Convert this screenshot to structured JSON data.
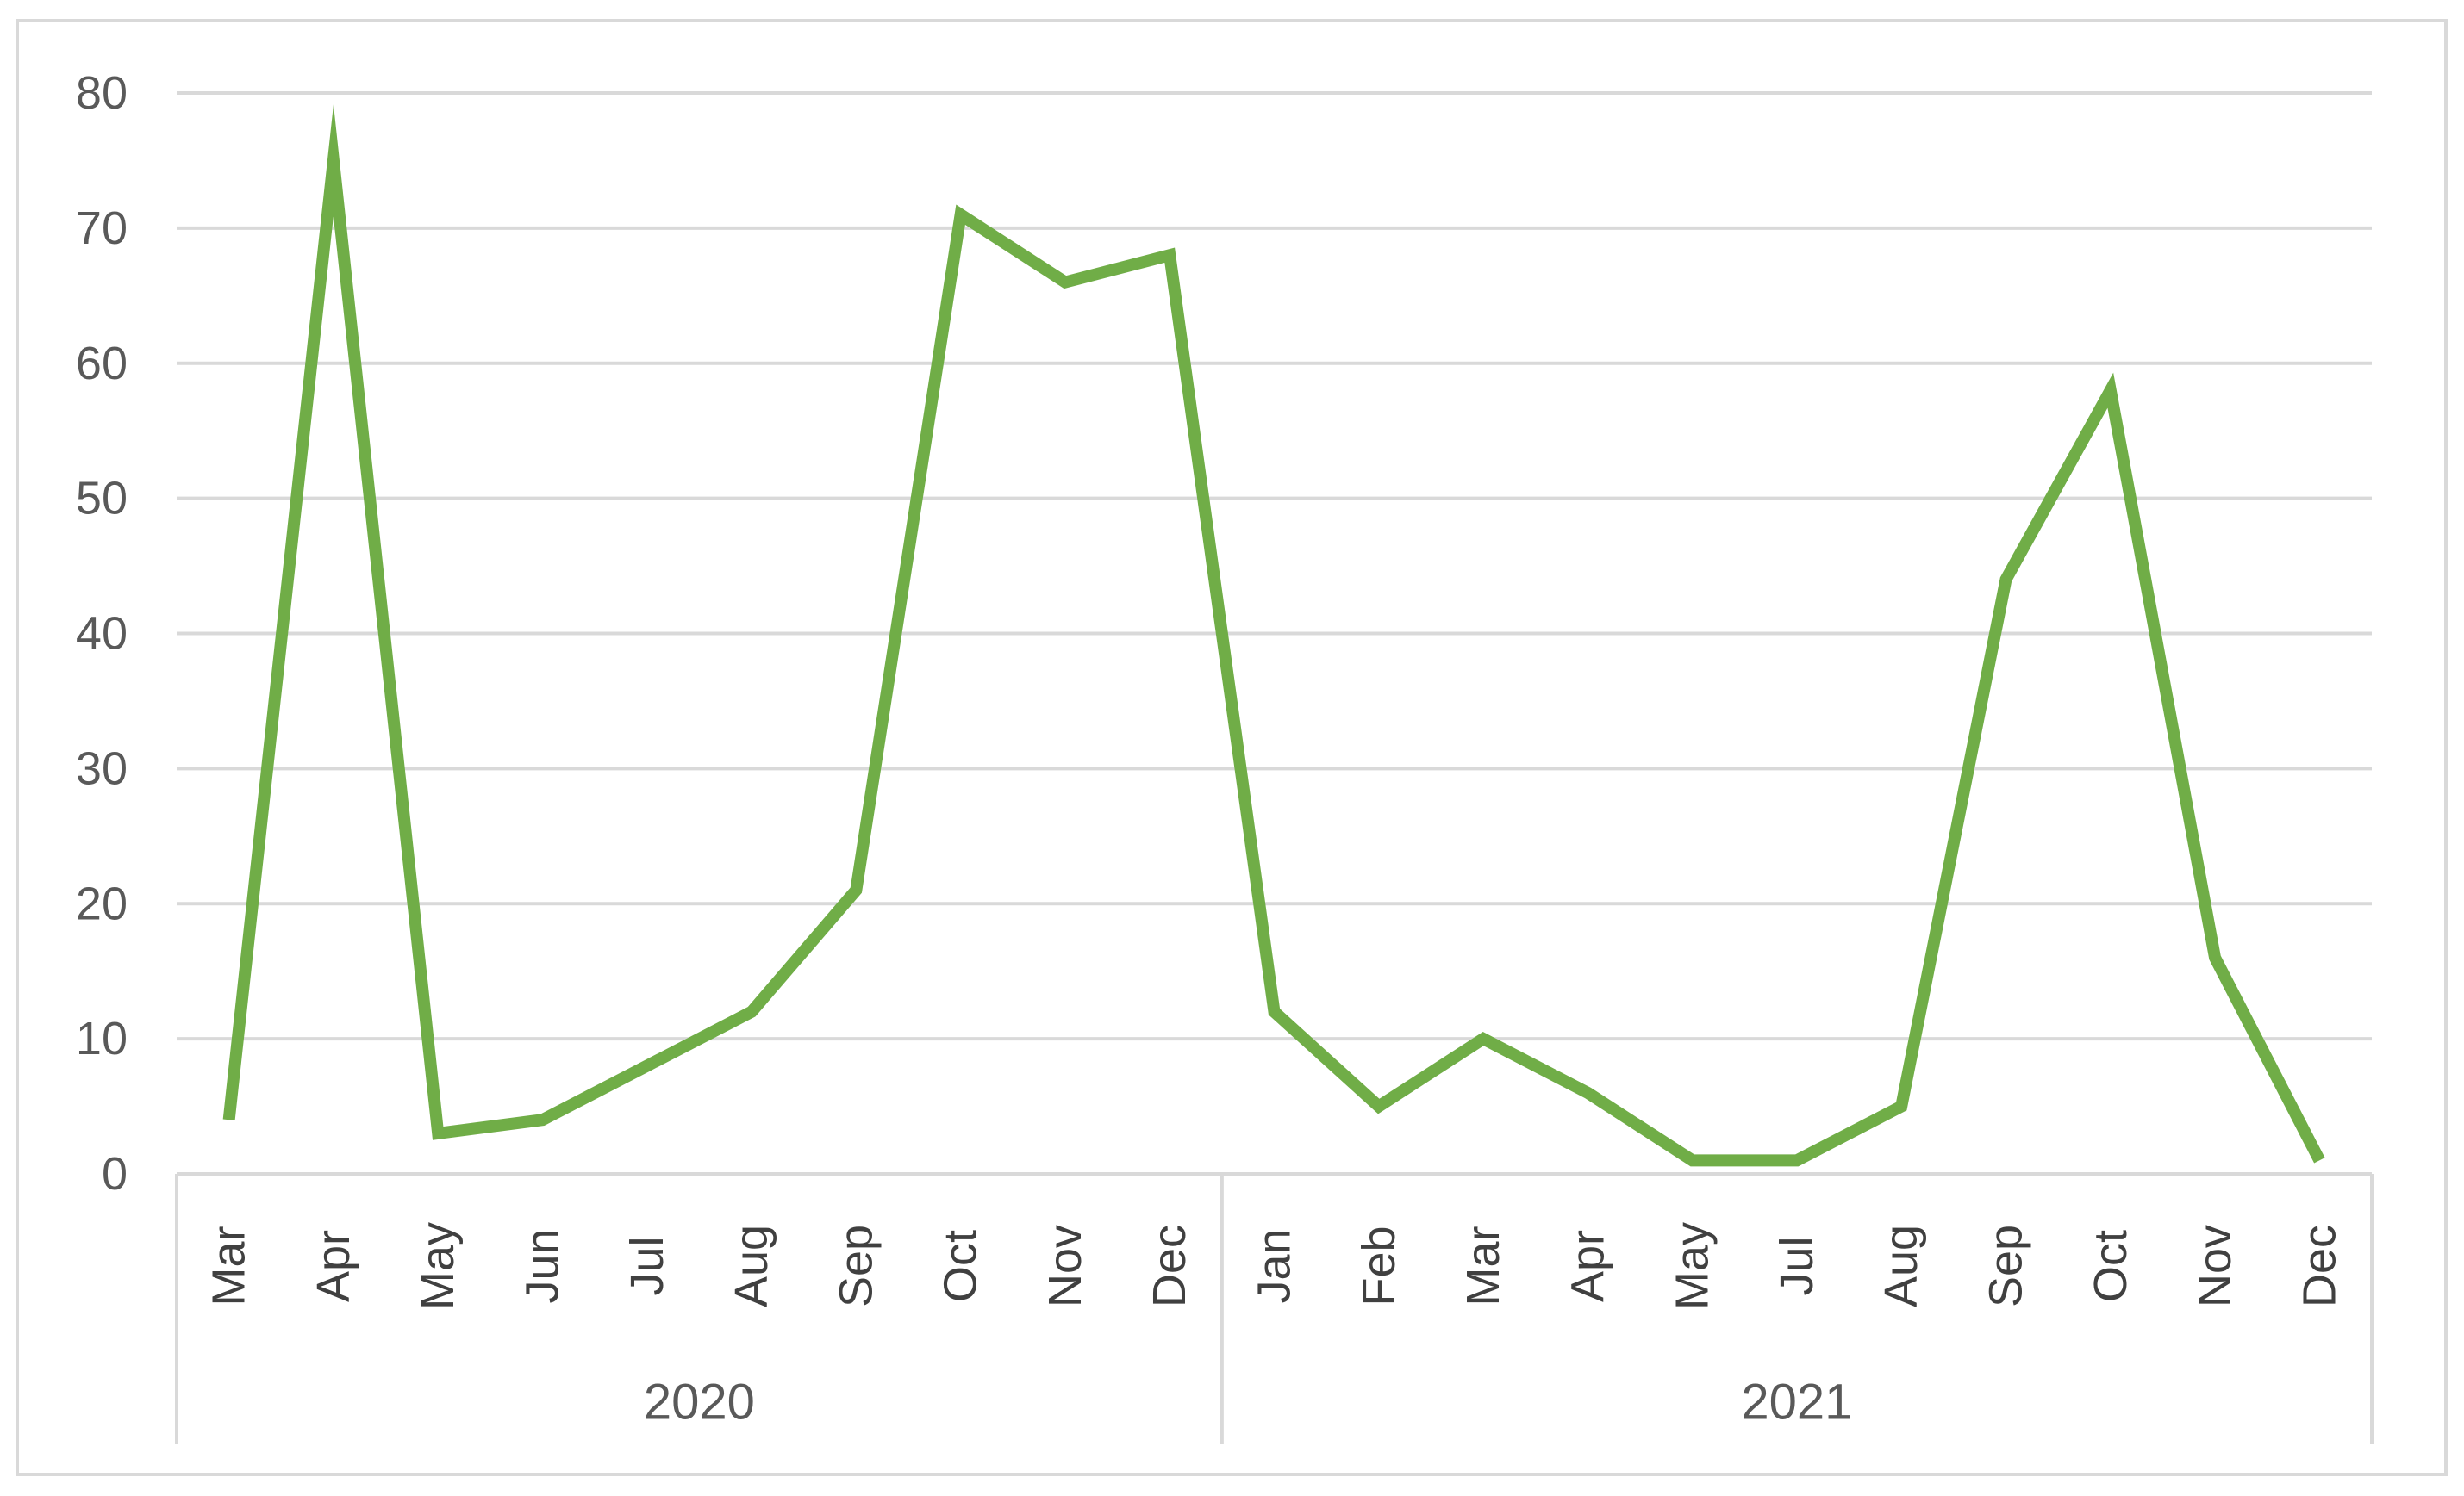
{
  "chart_data": {
    "type": "line",
    "title": "",
    "xlabel": "",
    "ylabel": "",
    "ylim": [
      0,
      80
    ],
    "yticks": [
      0,
      10,
      20,
      30,
      40,
      50,
      60,
      70,
      80
    ],
    "grid": true,
    "legend": "none",
    "groups": [
      {
        "label": "2020",
        "categories": [
          "Mar",
          "Apr",
          "May",
          "Jun",
          "Jul",
          "Aug",
          "Sep",
          "Oct",
          "Nov",
          "Dec"
        ]
      },
      {
        "label": "2021",
        "categories": [
          "Jan",
          "Feb",
          "Mar",
          "Apr",
          "May",
          "Jul",
          "Aug",
          "Sep",
          "Oct",
          "Nov",
          "Dec"
        ]
      }
    ],
    "series": [
      {
        "values": [
          4,
          75,
          3,
          4,
          8,
          12,
          21,
          71,
          66,
          68,
          12,
          5,
          10,
          6,
          1,
          1,
          5,
          44,
          58,
          16,
          1
        ],
        "color": "#70ad47"
      }
    ],
    "colors": {
      "grid": "#d9d9d9",
      "axis": "#d9d9d9",
      "line": "#70ad47"
    }
  }
}
